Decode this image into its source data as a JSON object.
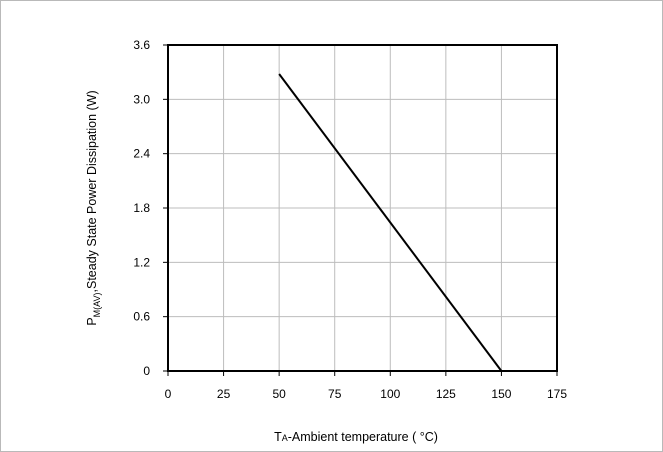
{
  "chart_data": {
    "type": "line",
    "xlabel_main": "T",
    "xlabel_sub": "A",
    "xlabel_rest": "-Ambient temperature ( °C)",
    "ylabel_main": "P",
    "ylabel_sub": "M(AV)",
    "ylabel_rest": ",Steady State Power Dissipation (W)",
    "xlim": [
      0,
      175
    ],
    "ylim": [
      0,
      3.6
    ],
    "x_ticks": [
      "0",
      "25",
      "50",
      "75",
      "100",
      "125",
      "150",
      "175"
    ],
    "y_ticks": [
      "0",
      "0.6",
      "1.2",
      "1.8",
      "2.4",
      "3.0",
      "3.6"
    ],
    "grid": true,
    "series": [
      {
        "x": [
          50,
          150
        ],
        "y": [
          3.28,
          0
        ],
        "color": "#000000"
      }
    ]
  }
}
